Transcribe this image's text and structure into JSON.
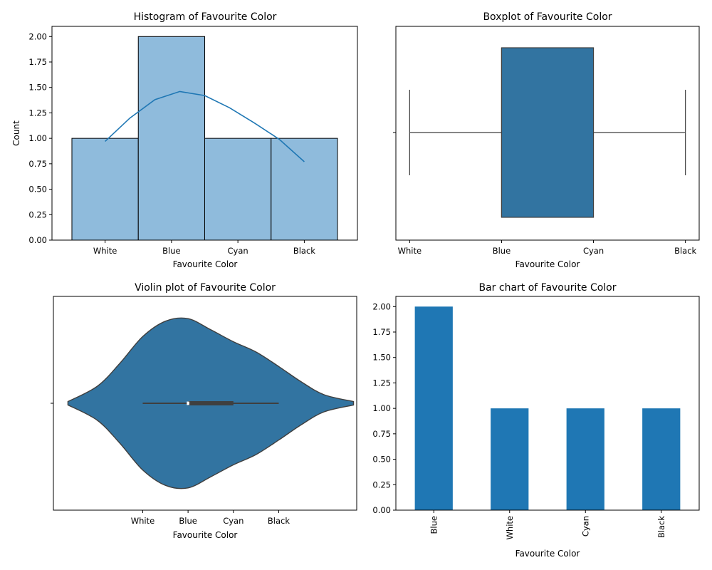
{
  "chart_data": [
    {
      "type": "bar",
      "variant": "histogram",
      "title": "Histogram of Favourite Color",
      "xlabel": "Favourite Color",
      "ylabel": "Count",
      "categories": [
        "White",
        "Blue",
        "Cyan",
        "Black"
      ],
      "values": [
        1,
        2,
        1,
        1
      ],
      "ylim": [
        0,
        2.1
      ],
      "yticks": [
        0.0,
        0.25,
        0.5,
        0.75,
        1.0,
        1.25,
        1.5,
        1.75,
        2.0
      ],
      "ytick_labels": [
        "0.00",
        "0.25",
        "0.50",
        "0.75",
        "1.00",
        "1.25",
        "1.50",
        "1.75",
        "2.00"
      ],
      "kde": [
        0.97,
        1.2,
        1.38,
        1.46,
        1.42,
        1.3,
        1.15,
        0.99,
        0.77
      ],
      "bar_color": "#8fbbdc",
      "line_color": "#1f77b4",
      "grid": false
    },
    {
      "type": "box",
      "title": "Boxplot of Favourite Color",
      "xlabel": "Favourite Color",
      "ylabel": "",
      "categories": [
        "White",
        "Blue",
        "Cyan",
        "Black"
      ],
      "stats": {
        "whisker_low": 0,
        "q1": 1,
        "median": 1,
        "q3": 2,
        "whisker_high": 3
      },
      "box_color": "#3274a1",
      "line_color": "#3f3f3f"
    },
    {
      "type": "violin",
      "title": "Violin plot of Favourite Color",
      "xlabel": "Favourite Color",
      "ylabel": "",
      "categories": [
        "White",
        "Blue",
        "Cyan",
        "Black"
      ],
      "xlim": [
        -1.97,
        4.72
      ],
      "density_x": [
        -1.65,
        -1.0,
        -0.5,
        0.0,
        0.5,
        1.0,
        1.5,
        2.0,
        2.5,
        3.0,
        3.5,
        4.0,
        4.65
      ],
      "density": [
        0.02,
        0.2,
        0.47,
        0.78,
        0.96,
        0.99,
        0.86,
        0.72,
        0.6,
        0.43,
        0.25,
        0.1,
        0.02
      ],
      "stats": {
        "whisker_low": 0,
        "q1": 1,
        "median": 1,
        "q3": 2,
        "whisker_high": 3
      },
      "body_color": "#3274a1",
      "line_color": "#3f3f3f"
    },
    {
      "type": "bar",
      "title": "Bar chart of Favourite Color",
      "xlabel": "Favourite Color",
      "ylabel": "",
      "categories": [
        "Blue",
        "White",
        "Cyan",
        "Black"
      ],
      "values": [
        2,
        1,
        1,
        1
      ],
      "ylim": [
        0,
        2.1
      ],
      "yticks": [
        0.0,
        0.25,
        0.5,
        0.75,
        1.0,
        1.25,
        1.5,
        1.75,
        2.0
      ],
      "ytick_labels": [
        "0.00",
        "0.25",
        "0.50",
        "0.75",
        "1.00",
        "1.25",
        "1.50",
        "1.75",
        "2.00"
      ],
      "tick_rotation": "vertical",
      "bar_color": "#1f77b4",
      "grid": false
    }
  ]
}
